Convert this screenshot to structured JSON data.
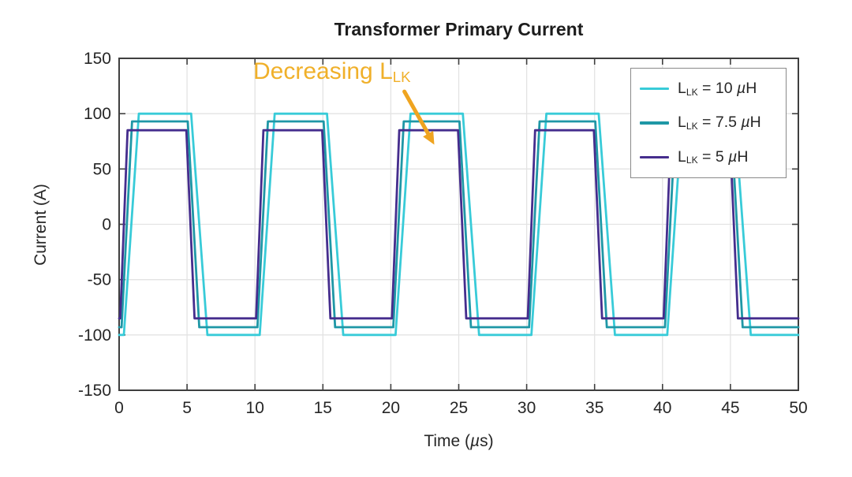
{
  "title": {
    "text": "Transformer Primary Current"
  },
  "axes": {
    "ylabel": "Current (A)",
    "xlabel_parts": [
      [
        "t",
        "Time ("
      ],
      [
        "i",
        "µ"
      ],
      [
        "t",
        "s)"
      ]
    ],
    "colors": {
      "grid": "#e3e3e3",
      "axis": "#3f3f3f",
      "tick_label": "#262626"
    }
  },
  "legend": {
    "entries": [
      {
        "color": "#38cbd8",
        "label_parts": [
          [
            "t",
            "L"
          ],
          [
            "sub",
            "LK"
          ],
          [
            "t",
            " = 10 "
          ],
          [
            "i",
            "µ"
          ],
          [
            "t",
            "H"
          ]
        ]
      },
      {
        "color": "#1f97a6",
        "label_parts": [
          [
            "t",
            "L"
          ],
          [
            "sub",
            "LK"
          ],
          [
            "t",
            " = 7.5 "
          ],
          [
            "i",
            "µ"
          ],
          [
            "t",
            "H"
          ]
        ]
      },
      {
        "color": "#452d8d",
        "label_parts": [
          [
            "t",
            "L"
          ],
          [
            "sub",
            "LK"
          ],
          [
            "t",
            " = 5 "
          ],
          [
            "i",
            "µ"
          ],
          [
            "t",
            "H"
          ]
        ]
      }
    ]
  },
  "annotation": {
    "text_parts": [
      [
        "t",
        "Decreasing L"
      ],
      [
        "sub",
        "LK"
      ]
    ],
    "text_color": "#f0b02a",
    "arrow_color": "#efa420",
    "arrow_from": [
      21.0,
      120
    ],
    "arrow_to": [
      23.2,
      72
    ]
  },
  "chart_data": {
    "type": "line",
    "title": "Transformer Primary Current",
    "xlabel": "Time (µs)",
    "ylabel": "Current (A)",
    "xlim": [
      0,
      50
    ],
    "ylim": [
      -150,
      150
    ],
    "xticks": [
      0,
      5,
      10,
      15,
      20,
      25,
      30,
      35,
      40,
      45,
      50
    ],
    "yticks": [
      150,
      100,
      50,
      0,
      -50,
      -100,
      -150
    ],
    "grid": true,
    "legend_position": "top-right",
    "waveform_note": "Trapezoidal square waves, period 10 µs; smaller leakage inductance gives steeper edges and lower amplitude",
    "series": [
      {
        "name": "L_LK = 10 µH",
        "color": "#38cbd8",
        "amplitude_A": 100,
        "points": [
          [
            0,
            -100
          ],
          [
            0.35,
            -100
          ],
          [
            1.45,
            100
          ],
          [
            5.3,
            100
          ],
          [
            6.5,
            -100
          ],
          [
            10.35,
            -100
          ],
          [
            11.45,
            100
          ],
          [
            15.3,
            100
          ],
          [
            16.5,
            -100
          ],
          [
            20.35,
            -100
          ],
          [
            21.45,
            100
          ],
          [
            25.3,
            100
          ],
          [
            26.5,
            -100
          ],
          [
            30.35,
            -100
          ],
          [
            31.45,
            100
          ],
          [
            35.3,
            100
          ],
          [
            36.5,
            -100
          ],
          [
            40.35,
            -100
          ],
          [
            41.45,
            100
          ],
          [
            45.3,
            100
          ],
          [
            46.5,
            -100
          ],
          [
            50,
            -100
          ]
        ]
      },
      {
        "name": "L_LK = 7.5 µH",
        "color": "#1f97a6",
        "amplitude_A": 93,
        "points": [
          [
            0,
            -93
          ],
          [
            0.18,
            -93
          ],
          [
            0.95,
            93
          ],
          [
            5.05,
            93
          ],
          [
            5.9,
            -93
          ],
          [
            10.18,
            -93
          ],
          [
            10.95,
            93
          ],
          [
            15.05,
            93
          ],
          [
            15.9,
            -93
          ],
          [
            20.18,
            -93
          ],
          [
            20.95,
            93
          ],
          [
            25.05,
            93
          ],
          [
            25.9,
            -93
          ],
          [
            30.18,
            -93
          ],
          [
            30.95,
            93
          ],
          [
            35.05,
            93
          ],
          [
            35.9,
            -93
          ],
          [
            40.18,
            -93
          ],
          [
            40.95,
            93
          ],
          [
            45.05,
            93
          ],
          [
            45.9,
            -93
          ],
          [
            50,
            -93
          ]
        ]
      },
      {
        "name": "L_LK = 5 µH",
        "color": "#452d8d",
        "amplitude_A": 85,
        "points": [
          [
            0,
            -85
          ],
          [
            0.08,
            -85
          ],
          [
            0.62,
            85
          ],
          [
            4.95,
            85
          ],
          [
            5.55,
            -85
          ],
          [
            10.08,
            -85
          ],
          [
            10.62,
            85
          ],
          [
            14.95,
            85
          ],
          [
            15.55,
            -85
          ],
          [
            20.08,
            -85
          ],
          [
            20.62,
            85
          ],
          [
            24.95,
            85
          ],
          [
            25.55,
            -85
          ],
          [
            30.08,
            -85
          ],
          [
            30.62,
            85
          ],
          [
            34.95,
            85
          ],
          [
            35.55,
            -85
          ],
          [
            40.08,
            -85
          ],
          [
            40.62,
            85
          ],
          [
            44.95,
            85
          ],
          [
            45.55,
            -85
          ],
          [
            50,
            -85
          ]
        ]
      }
    ],
    "annotation": {
      "text": "Decreasing L_LK",
      "arrow_from_t_us": 21.0,
      "arrow_from_A": 120,
      "arrow_to_t_us": 23.2,
      "arrow_to_A": 72
    }
  }
}
